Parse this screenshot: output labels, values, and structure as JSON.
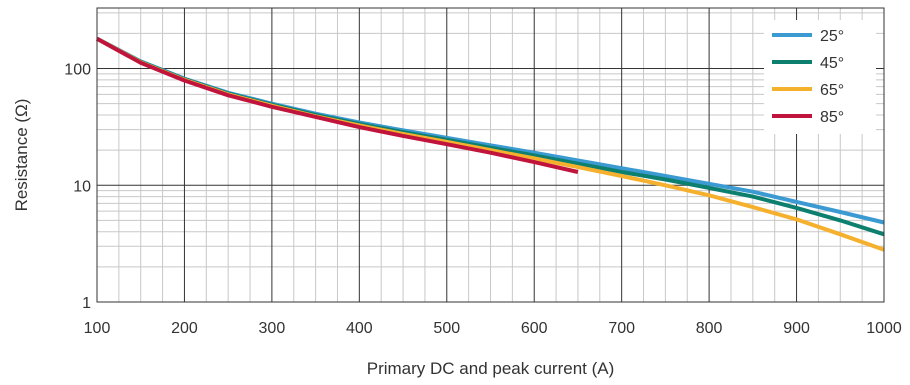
{
  "chart_data": {
    "type": "line",
    "title": "",
    "xlabel": "Primary DC and peak current (A)",
    "ylabel": "Resistance (Ω)",
    "xlim": [
      100,
      1000
    ],
    "ylim": [
      1,
      330
    ],
    "yscale": "log",
    "grid": true,
    "legend_position": "top-right",
    "x_ticks": [
      "100",
      "200",
      "300",
      "400",
      "500",
      "600",
      "700",
      "800",
      "900",
      "1000"
    ],
    "y_ticks": [
      "1",
      "10",
      "100"
    ],
    "series": [
      {
        "name": "25°",
        "color": "#3a9ad1",
        "x": [
          100,
          150,
          200,
          250,
          300,
          350,
          400,
          450,
          500,
          550,
          600,
          650,
          700,
          750,
          800,
          850,
          900,
          950,
          1000
        ],
        "y": [
          180,
          115,
          82,
          62,
          50,
          41,
          34.5,
          29.5,
          25.5,
          22,
          19,
          16.3,
          14,
          12,
          10.3,
          8.8,
          7.2,
          5.9,
          4.8
        ]
      },
      {
        "name": "45°",
        "color": "#0d7f6f",
        "x": [
          100,
          150,
          200,
          250,
          300,
          350,
          400,
          450,
          500,
          550,
          600,
          650,
          700,
          750,
          800,
          850,
          900,
          950,
          1000
        ],
        "y": [
          180,
          114,
          81,
          61,
          49,
          40,
          33.5,
          28.5,
          24.5,
          21,
          18,
          15.3,
          13,
          11.2,
          9.5,
          8,
          6.4,
          5,
          3.8
        ]
      },
      {
        "name": "65°",
        "color": "#f5b02e",
        "x": [
          100,
          150,
          200,
          250,
          300,
          350,
          400,
          450,
          500,
          550,
          600,
          650,
          700,
          750,
          800,
          850,
          900,
          950,
          1000
        ],
        "y": [
          180,
          113,
          80,
          60,
          48,
          39,
          32.5,
          27.5,
          23.5,
          20,
          17,
          14.3,
          12,
          10,
          8.2,
          6.5,
          5.1,
          3.8,
          2.8
        ]
      },
      {
        "name": "85°",
        "color": "#c0143c",
        "x": [
          100,
          150,
          200,
          250,
          300,
          350,
          400,
          450,
          500,
          550,
          600,
          650
        ],
        "y": [
          180,
          112,
          79,
          59,
          47,
          38.5,
          31.5,
          26.5,
          22.5,
          19,
          15.8,
          13
        ]
      }
    ]
  }
}
